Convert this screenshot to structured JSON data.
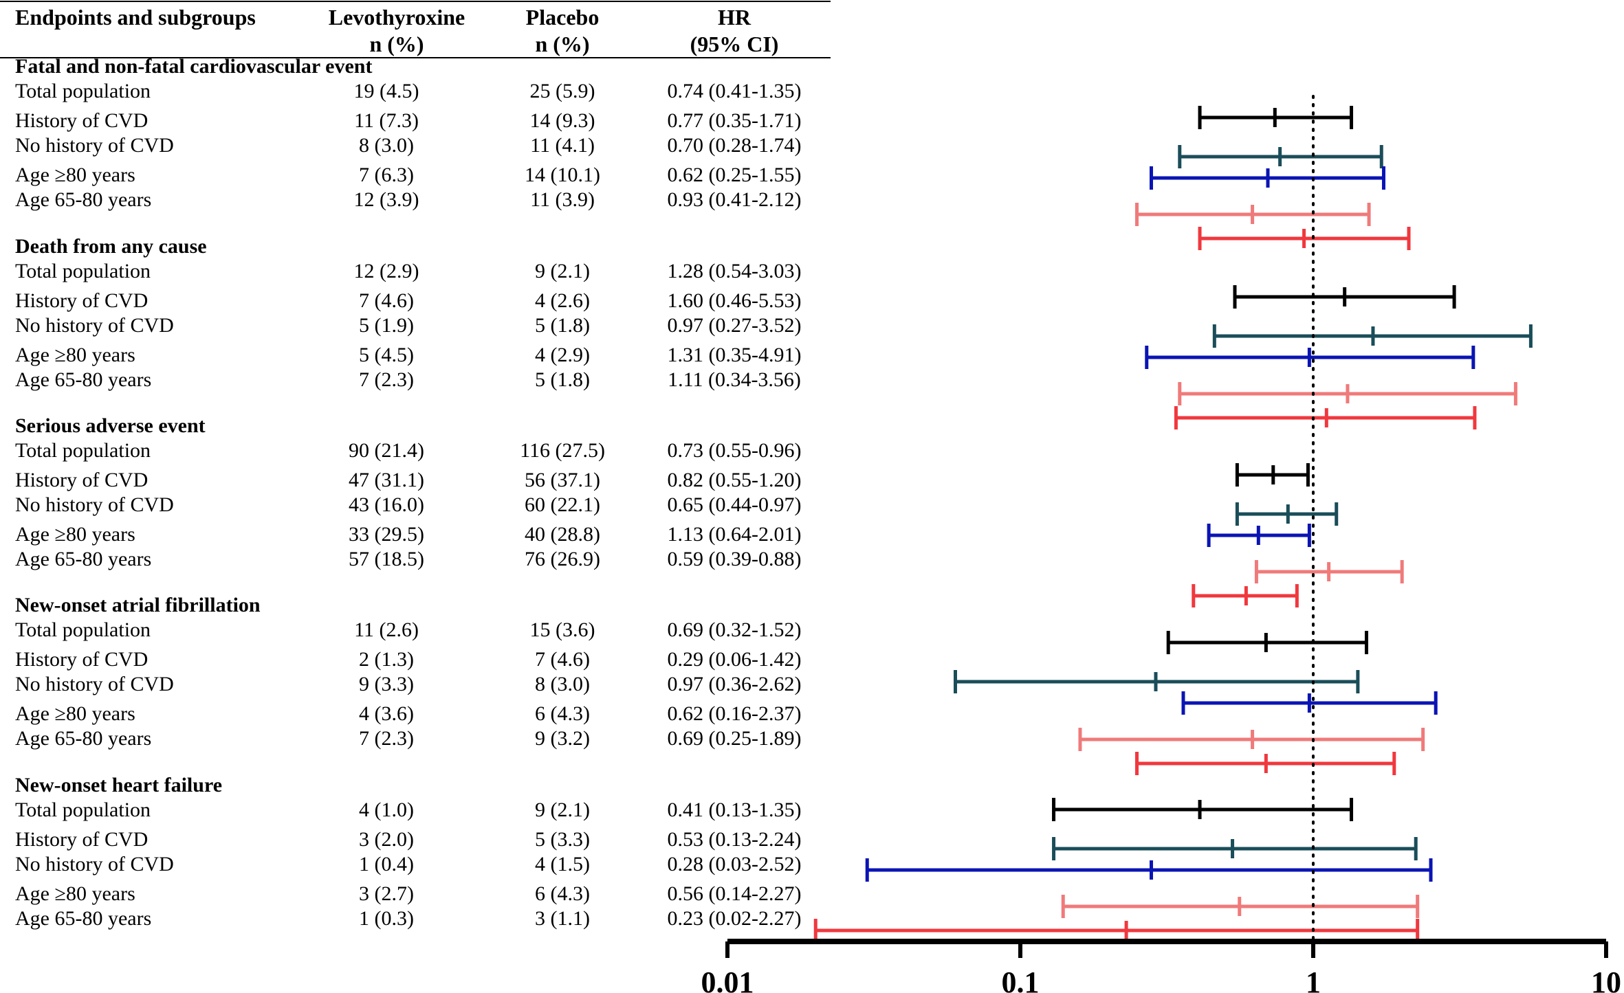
{
  "chart_data": {
    "type": "forest",
    "headers": {
      "label": "Endpoints and subgroups",
      "levo": [
        "Levothyroxine",
        "n (%)"
      ],
      "placebo": [
        "Placebo",
        "n (%)"
      ],
      "hr": [
        "HR",
        "(95% CI)"
      ]
    },
    "x_axis": {
      "scale": "log",
      "range": [
        0.01,
        10
      ],
      "ticks": [
        "0.01",
        "0.1",
        "1",
        "10"
      ],
      "reference_line": 1
    },
    "subgroup_colors": {
      "Total population": "#000000",
      "History of CVD": "#1a4d59",
      "No history of CVD": "#0a14b4",
      "Age ≥80 years": "#f07a7a",
      "Age 65-80 years": "#f0383e"
    },
    "sections": [
      {
        "title": "Fatal and non-fatal cardiovascular event",
        "rows": [
          {
            "label": "Total population",
            "levo": "19 (4.5)",
            "placebo": "25 (5.9)",
            "hr_text": "0.74 (0.41-1.35)",
            "hr": 0.74,
            "lo": 0.41,
            "hi": 1.35
          },
          {
            "label": "History of CVD",
            "levo": "11 (7.3)",
            "placebo": "14 (9.3)",
            "hr_text": "0.77 (0.35-1.71)",
            "hr": 0.77,
            "lo": 0.35,
            "hi": 1.71
          },
          {
            "label": "No history of CVD",
            "levo": "8 (3.0)",
            "placebo": "11 (4.1)",
            "hr_text": "0.70 (0.28-1.74)",
            "hr": 0.7,
            "lo": 0.28,
            "hi": 1.74
          },
          {
            "label": "Age ≥80 years",
            "levo": "7 (6.3)",
            "placebo": "14 (10.1)",
            "hr_text": "0.62 (0.25-1.55)",
            "hr": 0.62,
            "lo": 0.25,
            "hi": 1.55
          },
          {
            "label": "Age 65-80 years",
            "levo": "12 (3.9)",
            "placebo": "11 (3.9)",
            "hr_text": "0.93 (0.41-2.12)",
            "hr": 0.93,
            "lo": 0.41,
            "hi": 2.12
          }
        ]
      },
      {
        "title": "Death from any cause",
        "rows": [
          {
            "label": "Total population",
            "levo": "12 (2.9)",
            "placebo": "9 (2.1)",
            "hr_text": "1.28 (0.54-3.03)",
            "hr": 1.28,
            "lo": 0.54,
            "hi": 3.03
          },
          {
            "label": "History of CVD",
            "levo": "7 (4.6)",
            "placebo": "4 (2.6)",
            "hr_text": "1.60 (0.46-5.53)",
            "hr": 1.6,
            "lo": 0.46,
            "hi": 5.53
          },
          {
            "label": "No history of CVD",
            "levo": "5 (1.9)",
            "placebo": "5 (1.8)",
            "hr_text": "0.97 (0.27-3.52)",
            "hr": 0.97,
            "lo": 0.27,
            "hi": 3.52
          },
          {
            "label": "Age ≥80 years",
            "levo": "5 (4.5)",
            "placebo": "4 (2.9)",
            "hr_text": "1.31 (0.35-4.91)",
            "hr": 1.31,
            "lo": 0.35,
            "hi": 4.91
          },
          {
            "label": "Age 65-80 years",
            "levo": "7 (2.3)",
            "placebo": "5 (1.8)",
            "hr_text": "1.11 (0.34-3.56)",
            "hr": 1.11,
            "lo": 0.34,
            "hi": 3.56
          }
        ]
      },
      {
        "title": "Serious adverse event",
        "rows": [
          {
            "label": "Total population",
            "levo": "90 (21.4)",
            "placebo": "116 (27.5)",
            "hr_text": "0.73 (0.55-0.96)",
            "hr": 0.73,
            "lo": 0.55,
            "hi": 0.96
          },
          {
            "label": "History of CVD",
            "levo": "47 (31.1)",
            "placebo": "56 (37.1)",
            "hr_text": "0.82 (0.55-1.20)",
            "hr": 0.82,
            "lo": 0.55,
            "hi": 1.2
          },
          {
            "label": "No history of CVD",
            "levo": "43 (16.0)",
            "placebo": "60 (22.1)",
            "hr_text": "0.65 (0.44-0.97)",
            "hr": 0.65,
            "lo": 0.44,
            "hi": 0.97
          },
          {
            "label": "Age ≥80 years",
            "levo": "33 (29.5)",
            "placebo": "40 (28.8)",
            "hr_text": "1.13 (0.64-2.01)",
            "hr": 1.13,
            "lo": 0.64,
            "hi": 2.01
          },
          {
            "label": "Age 65-80 years",
            "levo": "57 (18.5)",
            "placebo": "76 (26.9)",
            "hr_text": "0.59 (0.39-0.88)",
            "hr": 0.59,
            "lo": 0.39,
            "hi": 0.88
          }
        ]
      },
      {
        "title": "New-onset atrial fibrillation",
        "rows": [
          {
            "label": "Total population",
            "levo": "11 (2.6)",
            "placebo": "15 (3.6)",
            "hr_text": "0.69 (0.32-1.52)",
            "hr": 0.69,
            "lo": 0.32,
            "hi": 1.52
          },
          {
            "label": "History of CVD",
            "levo": "2 (1.3)",
            "placebo": "7 (4.6)",
            "hr_text": "0.29 (0.06-1.42)",
            "hr": 0.29,
            "lo": 0.06,
            "hi": 1.42
          },
          {
            "label": "No history of CVD",
            "levo": "9 (3.3)",
            "placebo": "8 (3.0)",
            "hr_text": "0.97 (0.36-2.62)",
            "hr": 0.97,
            "lo": 0.36,
            "hi": 2.62
          },
          {
            "label": "Age ≥80 years",
            "levo": "4 (3.6)",
            "placebo": "6 (4.3)",
            "hr_text": "0.62 (0.16-2.37)",
            "hr": 0.62,
            "lo": 0.16,
            "hi": 2.37
          },
          {
            "label": "Age 65-80 years",
            "levo": "7 (2.3)",
            "placebo": "9 (3.2)",
            "hr_text": "0.69 (0.25-1.89)",
            "hr": 0.69,
            "lo": 0.25,
            "hi": 1.89
          }
        ]
      },
      {
        "title": "New-onset heart failure",
        "rows": [
          {
            "label": "Total population",
            "levo": "4 (1.0)",
            "placebo": "9 (2.1)",
            "hr_text": "0.41 (0.13-1.35)",
            "hr": 0.41,
            "lo": 0.13,
            "hi": 1.35
          },
          {
            "label": "History of CVD",
            "levo": "3 (2.0)",
            "placebo": "5 (3.3)",
            "hr_text": "0.53 (0.13-2.24)",
            "hr": 0.53,
            "lo": 0.13,
            "hi": 2.24
          },
          {
            "label": "No history of CVD",
            "levo": "1 (0.4)",
            "placebo": "4 (1.5)",
            "hr_text": "0.28 (0.03-2.52)",
            "hr": 0.28,
            "lo": 0.03,
            "hi": 2.52
          },
          {
            "label": "Age ≥80 years",
            "levo": "3 (2.7)",
            "placebo": "6 (4.3)",
            "hr_text": "0.56 (0.14-2.27)",
            "hr": 0.56,
            "lo": 0.14,
            "hi": 2.27
          },
          {
            "label": "Age 65-80 years",
            "levo": "1 (0.3)",
            "placebo": "3 (1.1)",
            "hr_text": "0.23 (0.02-2.27)",
            "hr": 0.23,
            "lo": 0.02,
            "hi": 2.27
          }
        ]
      }
    ]
  }
}
